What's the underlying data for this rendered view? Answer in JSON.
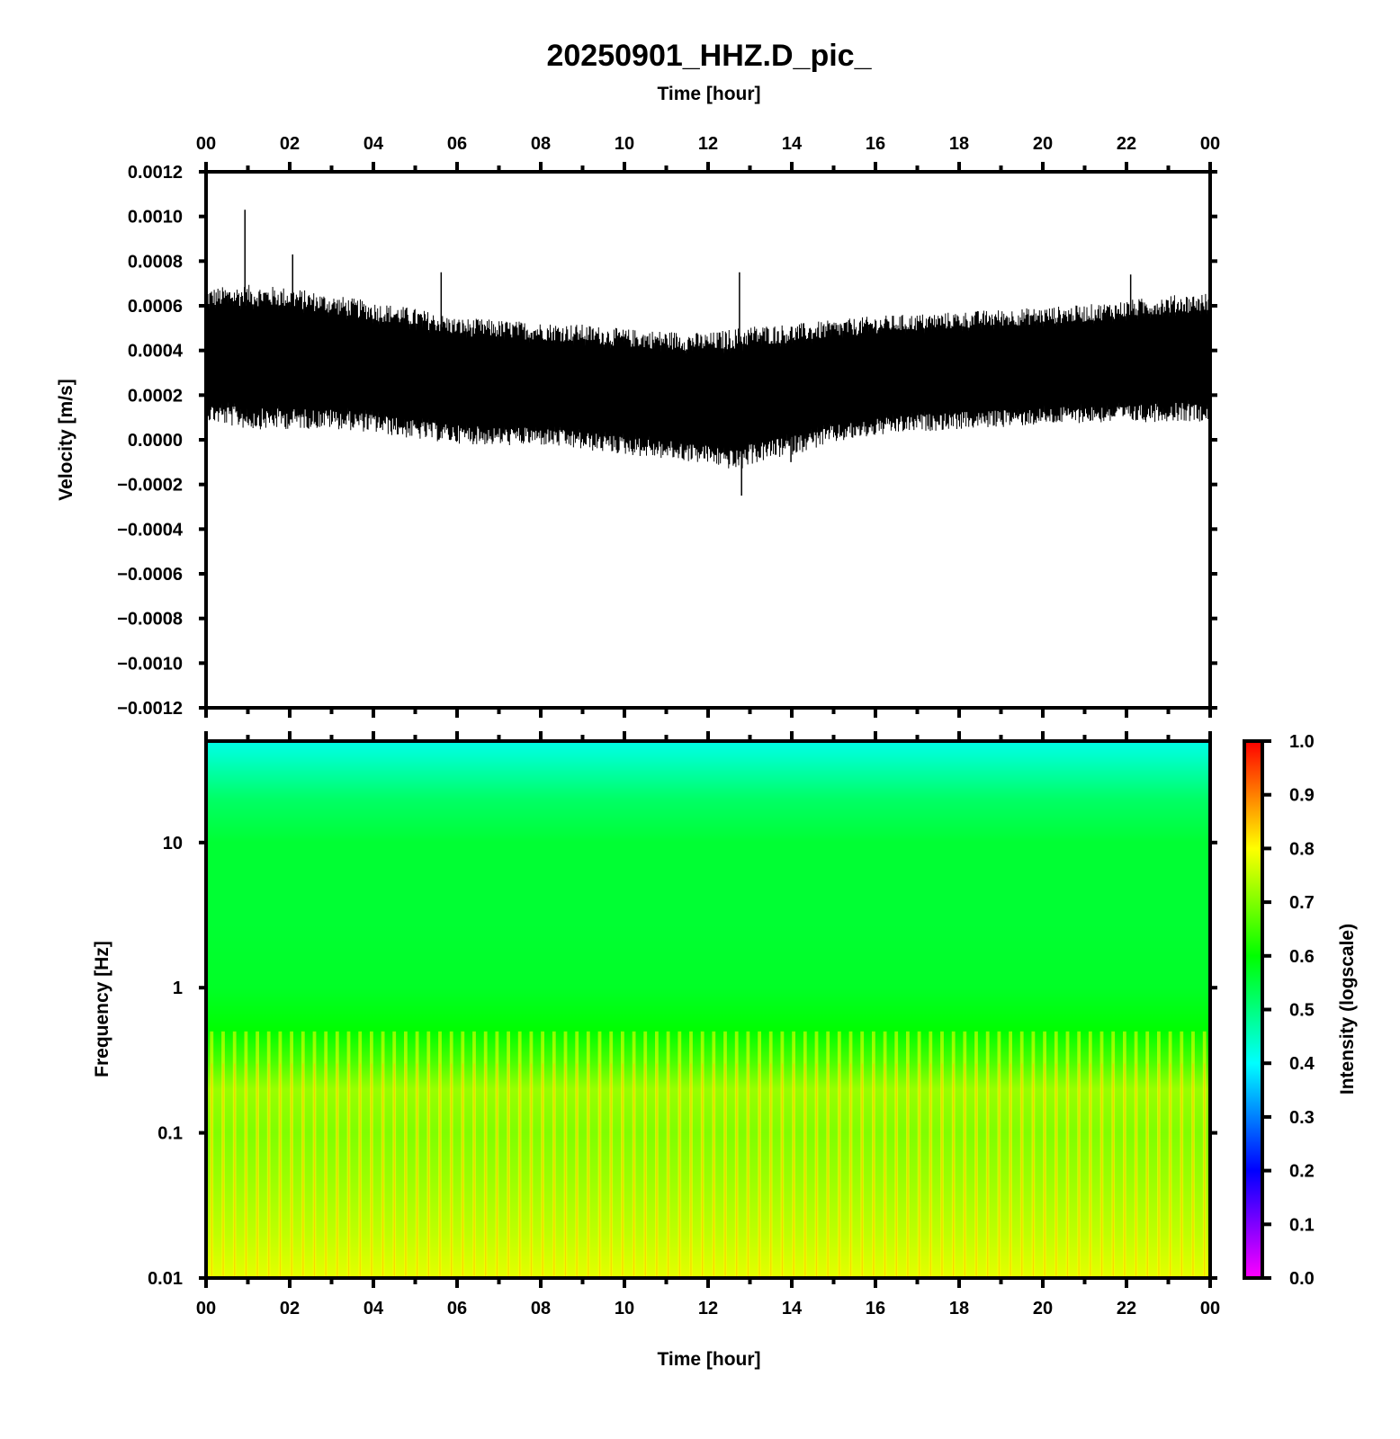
{
  "figure": {
    "title": "20250901_HHZ.D_pic_"
  },
  "chart_data": [
    {
      "type": "line",
      "name": "waveform",
      "xlabel": "Time [hour]",
      "ylabel": "Velocity [m/s]",
      "xlim": [
        0,
        24
      ],
      "ylim": [
        -0.0012,
        0.0012
      ],
      "x_tick_labels": [
        "00",
        "02",
        "04",
        "06",
        "08",
        "10",
        "12",
        "14",
        "16",
        "18",
        "20",
        "22",
        "00"
      ],
      "y_ticks": [
        0.0012,
        0.001,
        0.0008,
        0.0006,
        0.0004,
        0.0002,
        0.0,
        -0.0002,
        -0.0004,
        -0.0006,
        -0.0008,
        -0.001,
        -0.0012
      ],
      "y_tick_labels": [
        "0.0012",
        "0.0010",
        "0.0008",
        "0.0006",
        "0.0004",
        "0.0002",
        "0.0000",
        "−0.0002",
        "−0.0004",
        "−0.0006",
        "−0.0008",
        "−0.0010",
        "−0.0012"
      ],
      "color": "#000000",
      "envelope": {
        "x": [
          0,
          1,
          2,
          3,
          4,
          5,
          6,
          7,
          8,
          9,
          10,
          11,
          12,
          12.75,
          13,
          14,
          15,
          16,
          17,
          18,
          19,
          20,
          21,
          22,
          23,
          24
        ],
        "upper": [
          0.00063,
          0.00064,
          0.00063,
          0.0006,
          0.00057,
          0.00054,
          0.0005,
          0.00049,
          0.00048,
          0.00047,
          0.00045,
          0.00044,
          0.00043,
          0.00045,
          0.00046,
          0.00047,
          0.00049,
          0.00051,
          0.00052,
          0.00053,
          0.00054,
          0.00055,
          0.00056,
          0.00058,
          0.0006,
          0.00061
        ],
        "lower": [
          0.00013,
          0.0001,
          0.0001,
          0.0001,
          8e-05,
          5e-05,
          3e-05,
          2e-05,
          2e-05,
          0.0,
          -2e-05,
          -4e-05,
          -6e-05,
          -9e-05,
          -6e-05,
          -2e-05,
          3e-05,
          6e-05,
          8e-05,
          9e-05,
          0.0001,
          0.00011,
          0.00012,
          0.00012,
          0.00013,
          0.00013
        ]
      },
      "spikes": [
        {
          "x": 0.93,
          "y": 0.00103
        },
        {
          "x": 2.07,
          "y": 0.00083
        },
        {
          "x": 5.62,
          "y": 0.00075
        },
        {
          "x": 12.75,
          "y": 0.00075
        },
        {
          "x": 12.8,
          "y": -0.00025
        },
        {
          "x": 13.98,
          "y": -0.0001
        },
        {
          "x": 22.1,
          "y": 0.00074
        }
      ]
    },
    {
      "type": "heatmap",
      "name": "spectrogram",
      "xlabel": "Time [hour]",
      "ylabel": "Frequency [Hz]",
      "xlim": [
        0,
        24
      ],
      "ylim": [
        0.01,
        50
      ],
      "yscale": "log",
      "x_tick_labels": [
        "00",
        "02",
        "04",
        "06",
        "08",
        "10",
        "12",
        "14",
        "16",
        "18",
        "20",
        "22",
        "00"
      ],
      "y_ticks": [
        10,
        1,
        0.1,
        0.01
      ],
      "y_tick_labels": [
        "10",
        "1",
        "0.1",
        "0.01"
      ],
      "intensity_profile": {
        "frequency": [
          50,
          40,
          20,
          10,
          3,
          1,
          0.5,
          0.3,
          0.2,
          0.1,
          0.05,
          0.02,
          0.01
        ],
        "intensity": [
          0.42,
          0.44,
          0.52,
          0.56,
          0.56,
          0.57,
          0.6,
          0.66,
          0.72,
          0.7,
          0.72,
          0.75,
          0.78
        ]
      },
      "stripe_count": 88,
      "colorbar": {
        "label": "Intensity (logscale)",
        "ticks": [
          "1.0",
          "0.9",
          "0.8",
          "0.7",
          "0.6",
          "0.5",
          "0.4",
          "0.3",
          "0.2",
          "0.1",
          "0.0"
        ],
        "range": [
          0.0,
          1.0
        ],
        "colors": [
          "#ff00ff",
          "#0000ff",
          "#00ffff",
          "#00ff00",
          "#ffff00",
          "#ff0000"
        ]
      }
    }
  ]
}
